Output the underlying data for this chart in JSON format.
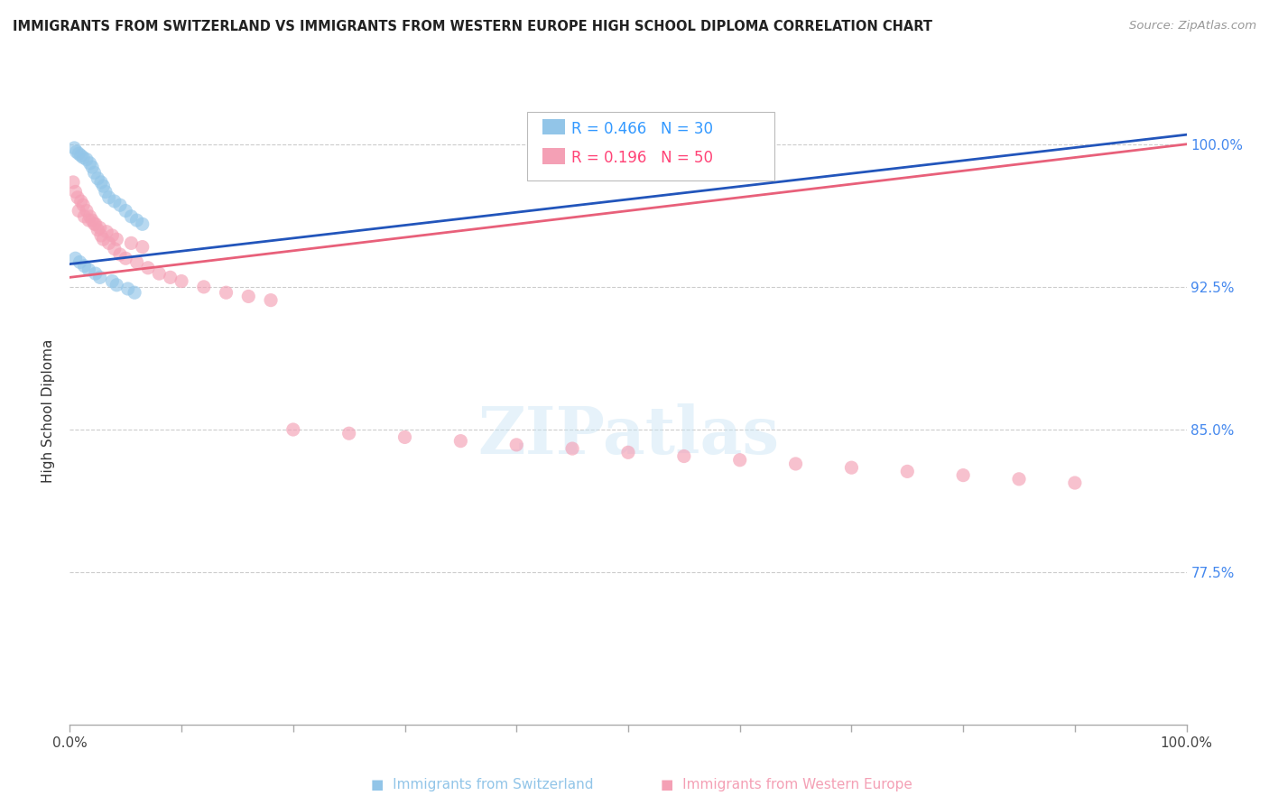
{
  "title": "IMMIGRANTS FROM SWITZERLAND VS IMMIGRANTS FROM WESTERN EUROPE HIGH SCHOOL DIPLOMA CORRELATION CHART",
  "source": "Source: ZipAtlas.com",
  "ylabel": "High School Diploma",
  "ytick_labels": [
    "100.0%",
    "92.5%",
    "85.0%",
    "77.5%"
  ],
  "ytick_values": [
    1.0,
    0.925,
    0.85,
    0.775
  ],
  "xmin": 0.0,
  "xmax": 1.0,
  "ymin": 0.695,
  "ymax": 1.025,
  "legend1_label": "Immigrants from Switzerland",
  "legend2_label": "Immigrants from Western Europe",
  "legend1_R": "R = 0.466",
  "legend1_N": "N = 30",
  "legend2_R": "R = 0.196",
  "legend2_N": "N = 50",
  "blue_color": "#92c5e8",
  "pink_color": "#f4a0b5",
  "blue_line_color": "#2255bb",
  "pink_line_color": "#e8607a",
  "blue_scatter_x": [
    0.004,
    0.006,
    0.008,
    0.01,
    0.012,
    0.015,
    0.018,
    0.02,
    0.022,
    0.025,
    0.028,
    0.03,
    0.032,
    0.035,
    0.04,
    0.045,
    0.05,
    0.055,
    0.06,
    0.065,
    0.005,
    0.009,
    0.013,
    0.017,
    0.023,
    0.027,
    0.038,
    0.042,
    0.052,
    0.058
  ],
  "blue_scatter_y": [
    0.998,
    0.996,
    0.995,
    0.994,
    0.993,
    0.992,
    0.99,
    0.988,
    0.985,
    0.982,
    0.98,
    0.978,
    0.975,
    0.972,
    0.97,
    0.968,
    0.965,
    0.962,
    0.96,
    0.958,
    0.94,
    0.938,
    0.936,
    0.934,
    0.932,
    0.93,
    0.928,
    0.926,
    0.924,
    0.922
  ],
  "pink_scatter_x": [
    0.003,
    0.005,
    0.007,
    0.01,
    0.012,
    0.015,
    0.018,
    0.02,
    0.022,
    0.025,
    0.028,
    0.03,
    0.035,
    0.04,
    0.045,
    0.05,
    0.06,
    0.07,
    0.08,
    0.09,
    0.1,
    0.12,
    0.14,
    0.16,
    0.18,
    0.2,
    0.25,
    0.3,
    0.35,
    0.4,
    0.45,
    0.5,
    0.55,
    0.6,
    0.65,
    0.7,
    0.75,
    0.8,
    0.85,
    0.9,
    0.008,
    0.013,
    0.017,
    0.023,
    0.027,
    0.033,
    0.038,
    0.042,
    0.055,
    0.065
  ],
  "pink_scatter_y": [
    0.98,
    0.975,
    0.972,
    0.97,
    0.968,
    0.965,
    0.962,
    0.96,
    0.958,
    0.955,
    0.952,
    0.95,
    0.948,
    0.945,
    0.942,
    0.94,
    0.938,
    0.935,
    0.932,
    0.93,
    0.928,
    0.925,
    0.922,
    0.92,
    0.918,
    0.85,
    0.848,
    0.846,
    0.844,
    0.842,
    0.84,
    0.838,
    0.836,
    0.834,
    0.832,
    0.83,
    0.828,
    0.826,
    0.824,
    0.822,
    0.965,
    0.962,
    0.96,
    0.958,
    0.956,
    0.954,
    0.952,
    0.95,
    0.948,
    0.946
  ]
}
